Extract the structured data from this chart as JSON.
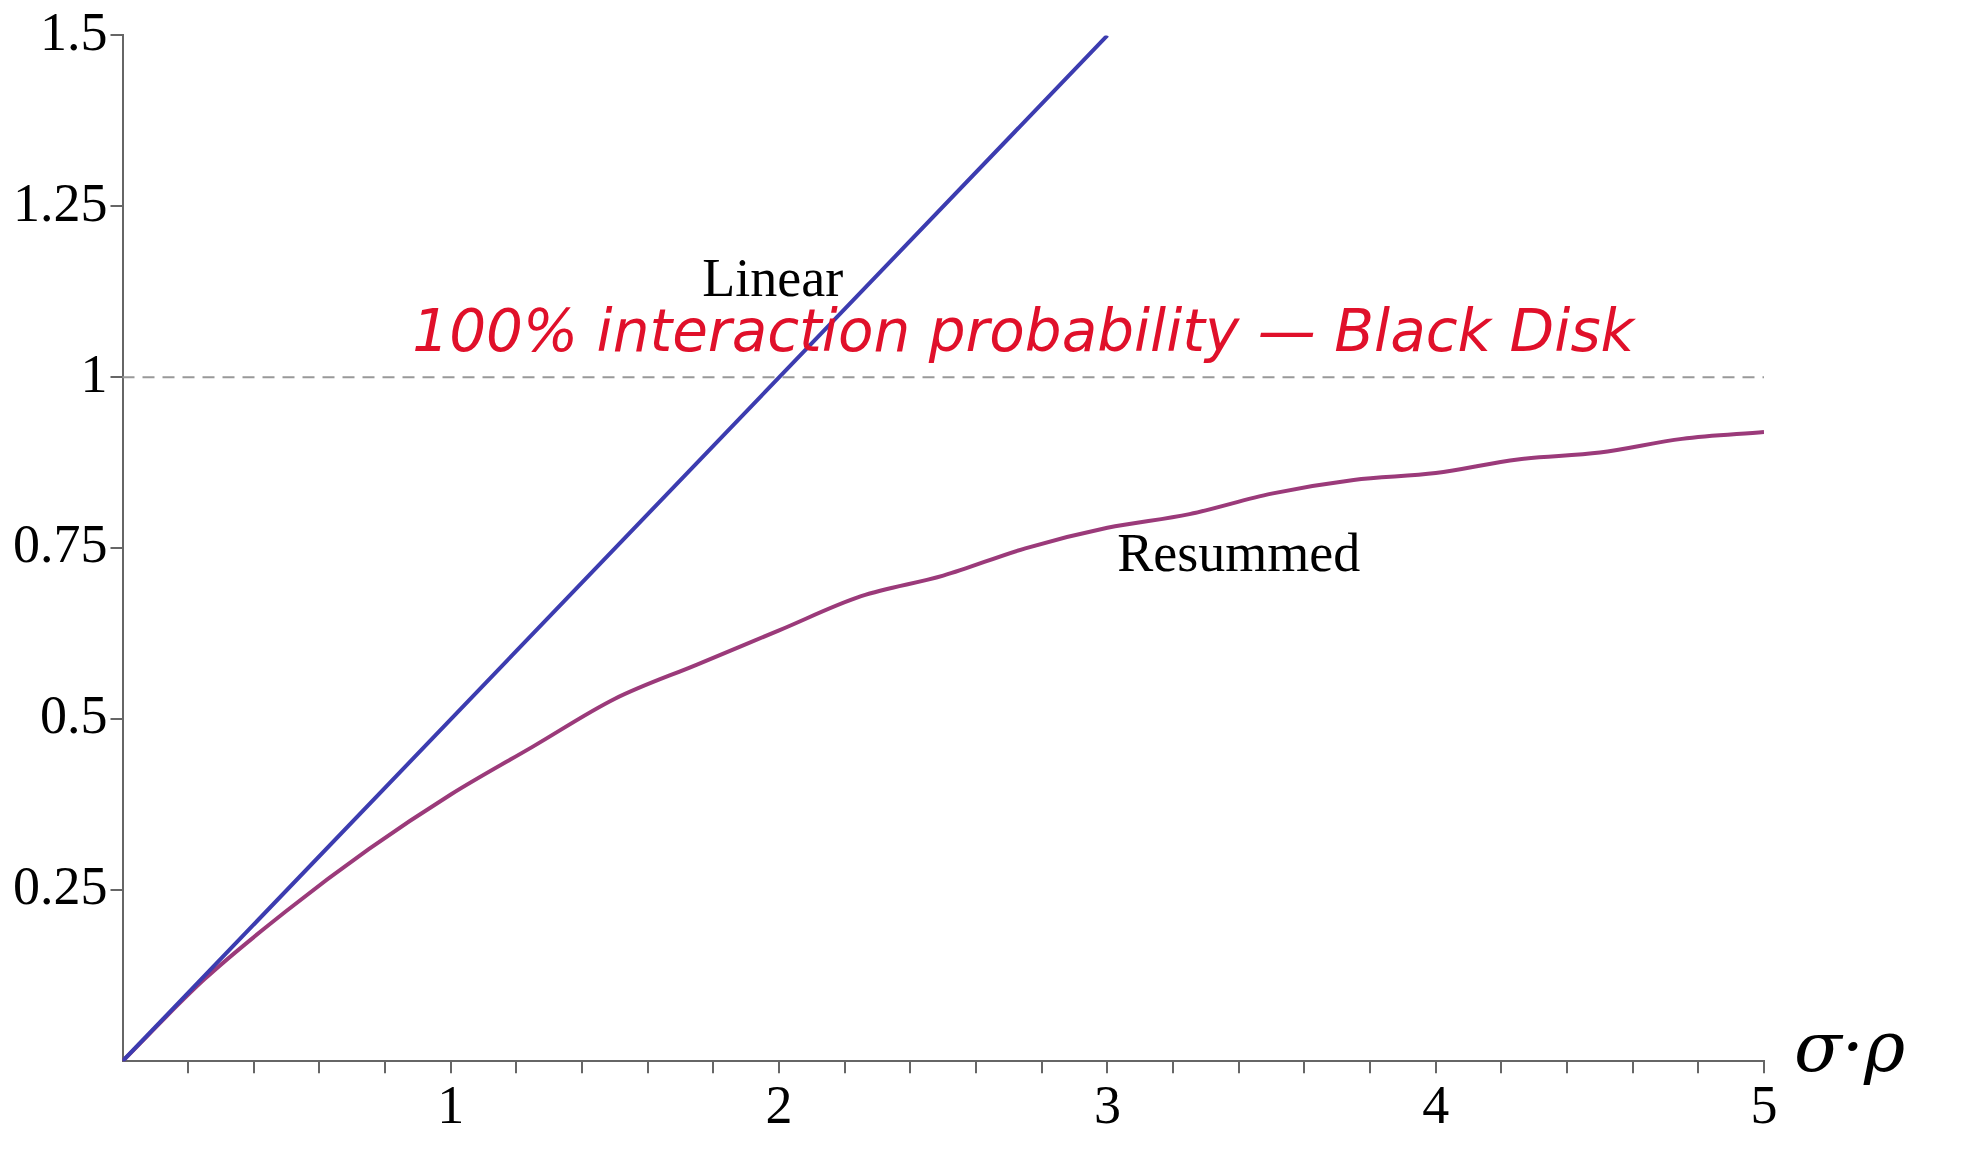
{
  "chart_data": {
    "type": "line",
    "xlabel": "σ·ρ",
    "xlim": [
      0,
      5
    ],
    "ylim": [
      0,
      1.5
    ],
    "xticks": [
      {
        "value": 0.2,
        "label": null
      },
      {
        "value": 0.4,
        "label": null
      },
      {
        "value": 0.6,
        "label": null
      },
      {
        "value": 0.8,
        "label": null
      },
      1,
      {
        "value": 1.2,
        "label": null
      },
      {
        "value": 1.4,
        "label": null
      },
      {
        "value": 1.6,
        "label": null
      },
      {
        "value": 1.8,
        "label": null
      },
      2,
      {
        "value": 2.2,
        "label": null
      },
      {
        "value": 2.4,
        "label": null
      },
      {
        "value": 2.6,
        "label": null
      },
      {
        "value": 2.8,
        "label": null
      },
      3,
      {
        "value": 3.2,
        "label": null
      },
      {
        "value": 3.4,
        "label": null
      },
      {
        "value": 3.6,
        "label": null
      },
      {
        "value": 3.8,
        "label": null
      },
      4,
      {
        "value": 4.2,
        "label": null
      },
      {
        "value": 4.4,
        "label": null
      },
      {
        "value": 4.6,
        "label": null
      },
      {
        "value": 4.8,
        "label": null
      },
      5
    ],
    "yticks": [
      0.25,
      0.5,
      0.75,
      1,
      1.25,
      1.5
    ],
    "series": [
      {
        "name": "Linear",
        "color": "#3c3cb0",
        "x": [
          0,
          3
        ],
        "values": [
          0,
          1.5
        ]
      },
      {
        "name": "Resummed",
        "color": "#9b3a7a",
        "x": [
          0,
          0.25,
          0.5,
          0.75,
          1,
          1.25,
          1.5,
          1.75,
          2,
          2.25,
          2.5,
          2.75,
          3,
          3.25,
          3.5,
          3.75,
          4,
          4.25,
          4.5,
          4.75,
          5
        ],
        "values": [
          0,
          0.12,
          0.22,
          0.31,
          0.39,
          0.46,
          0.53,
          0.58,
          0.63,
          0.68,
          0.71,
          0.75,
          0.78,
          0.8,
          0.83,
          0.85,
          0.86,
          0.88,
          0.89,
          0.91,
          0.92
        ]
      }
    ],
    "ref_lines": [
      {
        "axis": "y",
        "value": 1,
        "label": "100% interaction probability — Black Disk",
        "color": "#999999",
        "line_style": "dashed"
      }
    ],
    "grid": false,
    "legend": false,
    "marker": "none",
    "line_style": "solid"
  }
}
